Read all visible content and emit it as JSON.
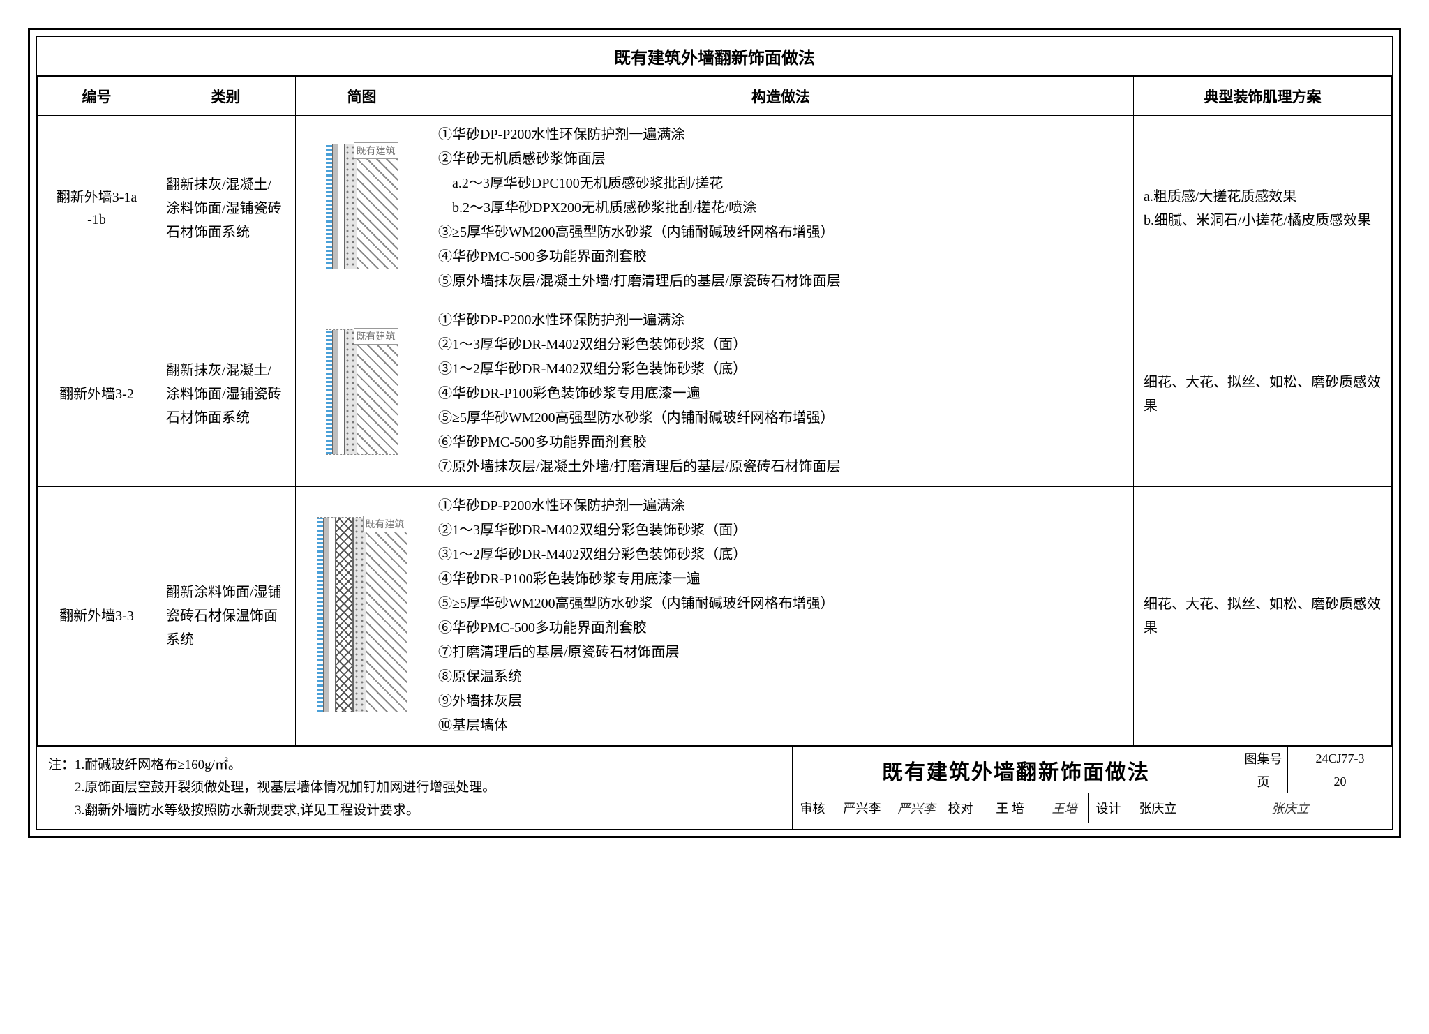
{
  "title": "既有建筑外墙翻新饰面做法",
  "columns": [
    "编号",
    "类别",
    "简图",
    "构造做法",
    "典型装饰肌理方案"
  ],
  "diagram_label": "既有建筑",
  "rows": [
    {
      "num_l1": "翻新外墙3-1a",
      "num_l2": "-1b",
      "category": "翻新抹灰/混凝土/涂料饰面/湿铺瓷砖石材饰面系统",
      "diagram_layers": [
        "blue",
        "grey",
        "gap",
        "dots",
        "hatch"
      ],
      "construction": [
        "①华砂DP-P200水性环保防护剂一遍满涂",
        "②华砂无机质感砂浆饰面层",
        "　a.2～3厚华砂DPC100无机质感砂浆批刮/搓花",
        "　b.2～3厚华砂DPX200无机质感砂浆批刮/搓花/喷涂",
        "③≥5厚华砂WM200高强型防水砂浆（内铺耐碱玻纤网格布增强）",
        "④华砂PMC-500多功能界面剂套胶",
        "⑤原外墙抹灰层/混凝土外墙/打磨清理后的基层/原瓷砖石材饰面层"
      ],
      "plan": "a.粗质感/大搓花质感效果\nb.细腻、米洞石/小搓花/橘皮质感效果"
    },
    {
      "num_l1": "翻新外墙3-2",
      "num_l2": "",
      "category": "翻新抹灰/混凝土/涂料饰面/湿铺瓷砖石材饰面系统",
      "diagram_layers": [
        "blue",
        "grey",
        "gap",
        "dots",
        "hatch"
      ],
      "construction": [
        "①华砂DP-P200水性环保防护剂一遍满涂",
        "②1～3厚华砂DR-M402双组分彩色装饰砂浆（面）",
        "③1～2厚华砂DR-M402双组分彩色装饰砂浆（底）",
        "④华砂DR-P100彩色装饰砂浆专用底漆一遍",
        "⑤≥5厚华砂WM200高强型防水砂浆（内铺耐碱玻纤网格布增强）",
        "⑥华砂PMC-500多功能界面剂套胶",
        "⑦原外墙抹灰层/混凝土外墙/打磨清理后的基层/原瓷砖石材饰面层"
      ],
      "plan": "细花、大花、拟丝、如松、磨砂质感效果"
    },
    {
      "num_l1": "翻新外墙3-3",
      "num_l2": "",
      "category": "翻新涂料饰面/湿铺瓷砖石材保温饰面系统",
      "diagram_layers": [
        "blue",
        "grey",
        "gap",
        "cross",
        "dots",
        "hatch"
      ],
      "diagram_tall": true,
      "construction": [
        "①华砂DP-P200水性环保防护剂一遍满涂",
        "②1～3厚华砂DR-M402双组分彩色装饰砂浆（面）",
        "③1～2厚华砂DR-M402双组分彩色装饰砂浆（底）",
        "④华砂DR-P100彩色装饰砂浆专用底漆一遍",
        "⑤≥5厚华砂WM200高强型防水砂浆（内铺耐碱玻纤网格布增强）",
        "⑥华砂PMC-500多功能界面剂套胶",
        "⑦打磨清理后的基层/原瓷砖石材饰面层",
        "⑧原保温系统",
        "⑨外墙抹灰层",
        "⑩基层墙体"
      ],
      "plan": "细花、大花、拟丝、如松、磨砂质感效果"
    }
  ],
  "notes_prefix": "注：",
  "notes": [
    "1.耐碱玻纤网格布≥160g/㎡。",
    "2.原饰面层空鼓开裂须做处理，视基层墙体情况加钉加网进行增强处理。",
    "3.翻新外墙防水等级按照防水新规要求,详见工程设计要求。"
  ],
  "titleblock": {
    "title": "既有建筑外墙翻新饰面做法",
    "series_label": "图集号",
    "series_value": "24CJ77-3",
    "page_label": "页",
    "page_value": "20",
    "sign": {
      "review_lbl": "审核",
      "review_name": "严兴李",
      "review_sig": "严兴李",
      "check_lbl": "校对",
      "check_name": "王 培",
      "check_sig": "王培",
      "design_lbl": "设计",
      "design_name": "张庆立",
      "design_sig": "张庆立"
    }
  },
  "colors": {
    "border": "#000000",
    "text": "#000000",
    "accent_blue": "#4aa0d8",
    "hatch_grey": "#888888"
  }
}
